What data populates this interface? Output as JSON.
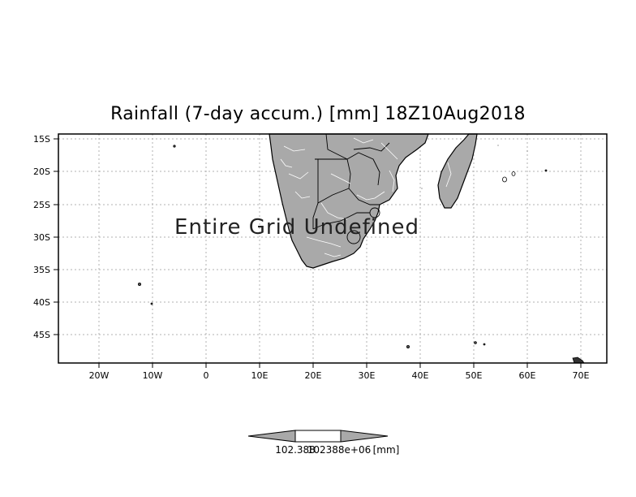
{
  "title": "Rainfall (7-day accum.) [mm] 18Z10Aug2018",
  "overlay_text": "Entire Grid Undefined",
  "lat_labels": [
    "15S",
    "20S",
    "25S",
    "30S",
    "35S",
    "40S",
    "45S"
  ],
  "lon_labels": [
    "20W",
    "10W",
    "0",
    "10E",
    "20E",
    "30E",
    "40E",
    "50E",
    "60E",
    "70E"
  ],
  "colorbar": {
    "min_label": "102.388",
    "max_label": "102388e+06",
    "unit_label": "[mm]"
  },
  "colors": {
    "land": "#a9a9a9",
    "rivers": "#ffffff",
    "grid": "#b0b0b0",
    "frame": "#000000"
  }
}
